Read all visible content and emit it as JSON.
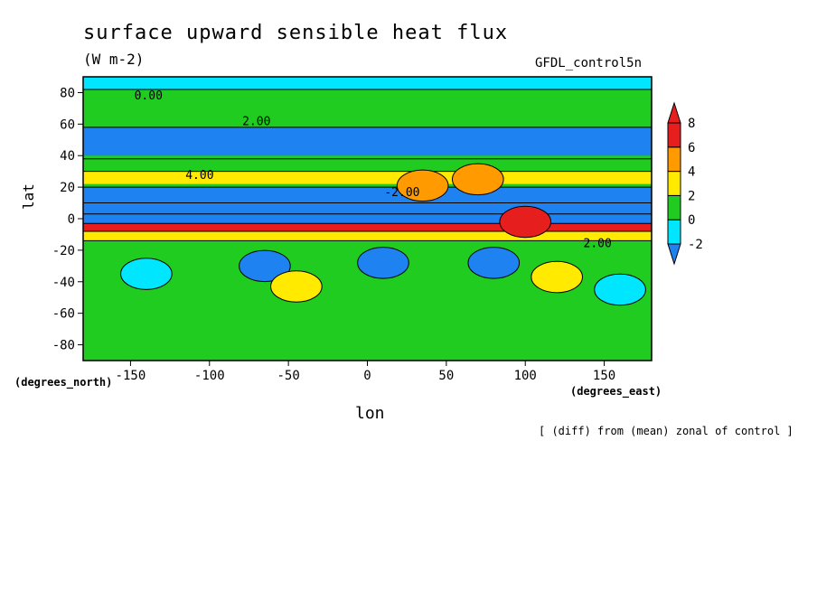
{
  "chart_data": {
    "type": "heatmap",
    "title": "surface upward sensible heat flux",
    "units": "(W m-2)",
    "dataset": "GFDL_control5n",
    "xlabel": "lon",
    "ylabel": "lat",
    "x_unit_note": "(degrees_east)",
    "y_unit_note": "(degrees_north)",
    "footnote": "[ (diff) from (mean) zonal of control ]",
    "xlim": [
      -180,
      180
    ],
    "ylim": [
      -90,
      90
    ],
    "x_ticks": [
      -150,
      -100,
      -50,
      0,
      50,
      100,
      150
    ],
    "y_ticks": [
      80,
      60,
      40,
      20,
      0,
      -20,
      -40,
      -60,
      -80
    ],
    "colorbar": {
      "levels": [
        -2,
        0,
        2,
        4,
        6,
        8
      ],
      "colors": [
        "#1e82f0",
        "#00e6ff",
        "#1fcc1f",
        "#ffea00",
        "#ff9a00",
        "#e61e1e"
      ],
      "below_color": "#1e82f0",
      "above_color": "#e61e1e"
    },
    "contour_labels": [
      "0.00",
      "2.00",
      "4.00",
      "-2.00",
      "2.00"
    ],
    "bands": [
      {
        "lat": [
          82,
          90
        ],
        "value": -1
      },
      {
        "lat": [
          65,
          82
        ],
        "value": 1
      },
      {
        "lat": [
          40,
          58
        ],
        "value": -3
      },
      {
        "lat": [
          30,
          38
        ],
        "value": 1
      },
      {
        "lat": [
          22,
          30
        ],
        "value": 3
      },
      {
        "lat": [
          10,
          20
        ],
        "value": -3
      },
      {
        "lat": [
          3,
          10
        ],
        "value": -6
      },
      {
        "lat": [
          -3,
          3
        ],
        "value": -10
      },
      {
        "lat": [
          -8,
          -3
        ],
        "value": 7
      },
      {
        "lat": [
          -14,
          -8
        ],
        "value": 3
      },
      {
        "lat": [
          -90,
          -14
        ],
        "value": 1
      }
    ],
    "blobs": [
      {
        "lon": 70,
        "lat": 25,
        "value": 5
      },
      {
        "lon": 35,
        "lat": 21,
        "value": 4
      },
      {
        "lon": 100,
        "lat": -2,
        "value": 9
      },
      {
        "lon": 10,
        "lat": -28,
        "value": -3
      },
      {
        "lon": -65,
        "lat": -30,
        "value": -3
      },
      {
        "lon": 80,
        "lat": -28,
        "value": -3
      },
      {
        "lon": 120,
        "lat": -37,
        "value": 3
      },
      {
        "lon": -45,
        "lat": -43,
        "value": 3
      },
      {
        "lon": -140,
        "lat": -35,
        "value": -1
      },
      {
        "lon": 160,
        "lat": -45,
        "value": -1
      }
    ]
  }
}
